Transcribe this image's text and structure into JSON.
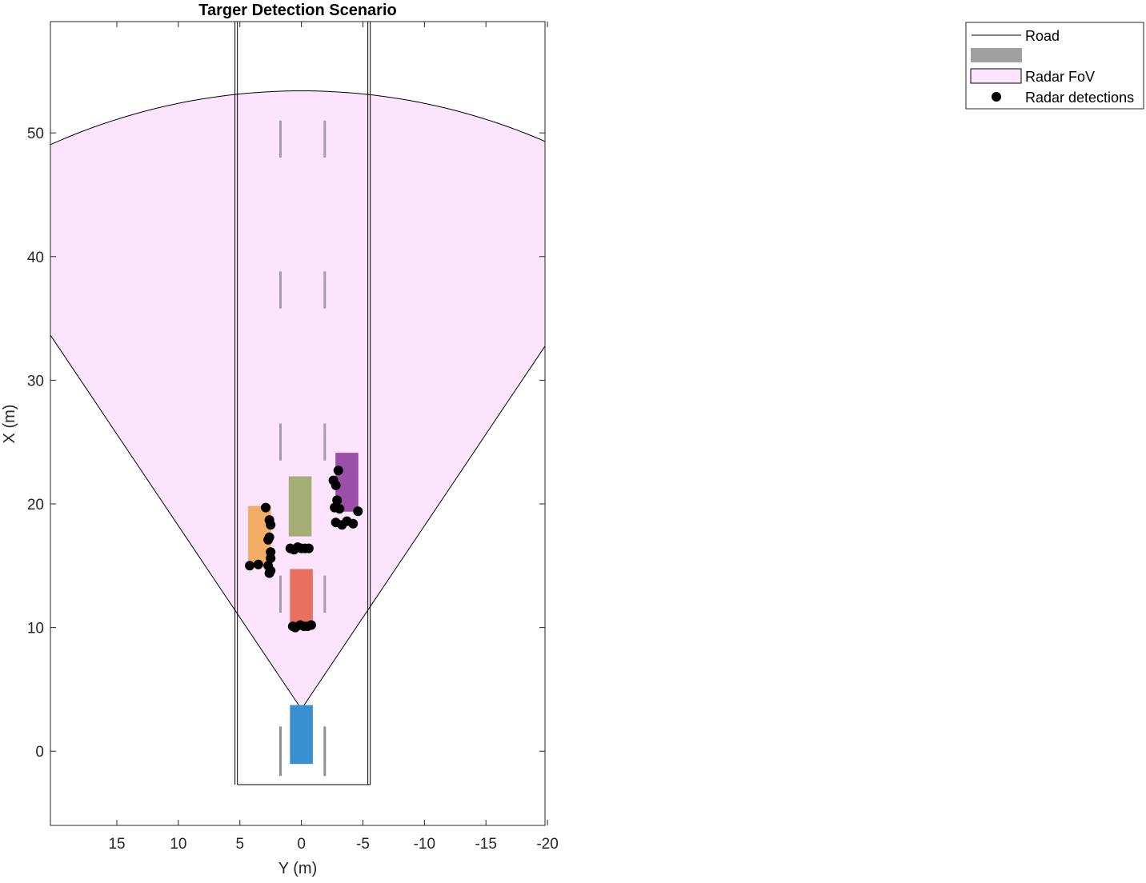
{
  "chart_data": {
    "type": "scatter",
    "title": "Targer Detection Scenario",
    "xlabel": "Y (m)",
    "ylabel": "X (m)",
    "xlim": [
      20.4,
      -19.8
    ],
    "ylim": [
      -6,
      59
    ],
    "x_reversed": true,
    "xticks": [
      15,
      10,
      5,
      0,
      -5,
      -10,
      -15,
      -20
    ],
    "yticks": [
      0,
      10,
      20,
      30,
      40,
      50
    ],
    "grid": false,
    "legend_position": "top-right",
    "legend": [
      {
        "label": "Road",
        "kind": "line"
      },
      {
        "label": "",
        "kind": "patch-gray"
      },
      {
        "label": "Radar FoV",
        "kind": "patch-fov"
      },
      {
        "label": "Radar detections",
        "kind": "marker"
      }
    ],
    "colors": {
      "road": "#000000",
      "lane_marking": "#a89ba8",
      "lane_marking_gray": "#8f8f8f",
      "fov_fill": "#fde4fd",
      "fov_edge": "#000000",
      "ego": "#3a8fd0",
      "red_car": "#e8705f",
      "green_car": "#a3ad74",
      "orange_car": "#f3ad66",
      "purple_car": "#9b4fa9",
      "detection": "#000000",
      "legend_gray": "#a0a0a0"
    },
    "road": {
      "left_edges": [
        5.2,
        5.4
      ],
      "right_edges": [
        -5.4,
        -5.6
      ],
      "x_start": -2.7,
      "x_end": 59
    },
    "lane_markings": {
      "y": [
        1.7,
        -1.9
      ],
      "segments": [
        [
          -2,
          2
        ],
        [
          11.2,
          14.2
        ],
        [
          23.5,
          26.5
        ],
        [
          35.8,
          38.8
        ],
        [
          48,
          51
        ]
      ]
    },
    "radar_fov": {
      "origin": [
        0,
        3.4
      ],
      "half_angle_deg": 34,
      "range": 50
    },
    "vehicles": [
      {
        "name": "ego",
        "y_range": [
          0.9,
          -0.9
        ],
        "x_range": [
          -1,
          3.7
        ]
      },
      {
        "name": "red",
        "y_range": [
          0.9,
          -0.9
        ],
        "x_range": [
          10.2,
          14.7
        ]
      },
      {
        "name": "green",
        "y_range": [
          1,
          -0.8
        ],
        "x_range": [
          17.4,
          22.2
        ]
      },
      {
        "name": "orange",
        "y_range": [
          4.3,
          2.5
        ],
        "x_range": [
          15,
          19.8
        ]
      },
      {
        "name": "purple",
        "y_range": [
          -2.8,
          -4.6
        ],
        "x_range": [
          19.4,
          24.1
        ]
      }
    ],
    "detections": [
      [
        0.7,
        10.1
      ],
      [
        0.5,
        10.0
      ],
      [
        0.1,
        10.2
      ],
      [
        -0.2,
        10.1
      ],
      [
        -0.5,
        10.1
      ],
      [
        -0.8,
        10.2
      ],
      [
        0.9,
        16.4
      ],
      [
        0.6,
        16.3
      ],
      [
        0.3,
        16.5
      ],
      [
        0.0,
        16.4
      ],
      [
        -0.3,
        16.4
      ],
      [
        -0.6,
        16.4
      ],
      [
        2.9,
        19.7
      ],
      [
        2.6,
        18.7
      ],
      [
        2.5,
        18.3
      ],
      [
        2.6,
        17.3
      ],
      [
        2.7,
        17.1
      ],
      [
        2.5,
        16.1
      ],
      [
        2.5,
        15.6
      ],
      [
        2.7,
        15.0
      ],
      [
        2.5,
        14.6
      ],
      [
        2.6,
        14.4
      ],
      [
        3.5,
        15.1
      ],
      [
        4.2,
        15.0
      ],
      [
        -2.6,
        21.9
      ],
      [
        -2.8,
        21.5
      ],
      [
        -3.0,
        22.7
      ],
      [
        -2.9,
        20.3
      ],
      [
        -2.7,
        19.7
      ],
      [
        -3.1,
        19.6
      ],
      [
        -2.8,
        18.5
      ],
      [
        -3.3,
        18.3
      ],
      [
        -3.7,
        18.6
      ],
      [
        -4.2,
        18.4
      ],
      [
        -4.6,
        19.4
      ]
    ]
  }
}
